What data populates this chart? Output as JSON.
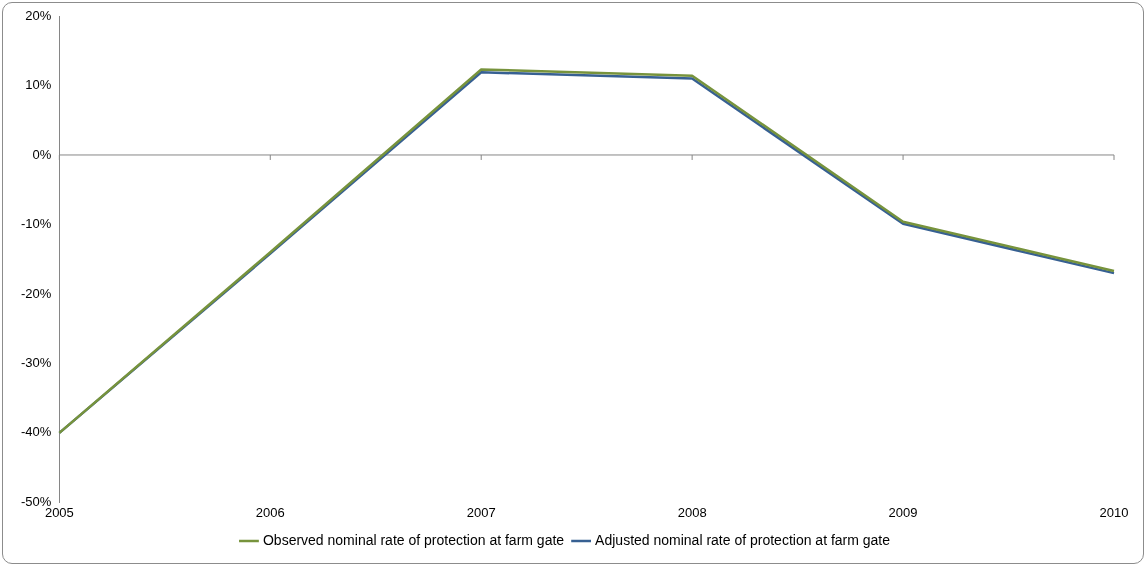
{
  "chart_data": {
    "type": "line",
    "categories": [
      "2005",
      "2006",
      "2007",
      "2008",
      "2009",
      "2010"
    ],
    "series": [
      {
        "name": "Observed nominal rate of protection at farm gate",
        "color": "#77933c",
        "values": [
          -40,
          -14,
          12.3,
          11.4,
          -9.6,
          -16.7
        ]
      },
      {
        "name": "Adjusted nominal rate of protection at farm gate",
        "color": "#376092",
        "values": [
          -40,
          -14.2,
          11.9,
          11.0,
          -9.9,
          -17.0
        ]
      }
    ],
    "ylim": [
      -50,
      20
    ],
    "yticks": [
      {
        "value": -50,
        "label": "-50%"
      },
      {
        "value": -40,
        "label": "-40%"
      },
      {
        "value": -30,
        "label": "-30%"
      },
      {
        "value": -20,
        "label": "-20%"
      },
      {
        "value": -10,
        "label": "-10%"
      },
      {
        "value": 0,
        "label": "0%"
      },
      {
        "value": 10,
        "label": "10%"
      },
      {
        "value": 20,
        "label": "20%"
      }
    ],
    "ref_lines": [
      {
        "axis": "y",
        "value": 0,
        "color": "#868686"
      }
    ],
    "legend": "bottom",
    "marker": "none",
    "line_style": "solid"
  }
}
